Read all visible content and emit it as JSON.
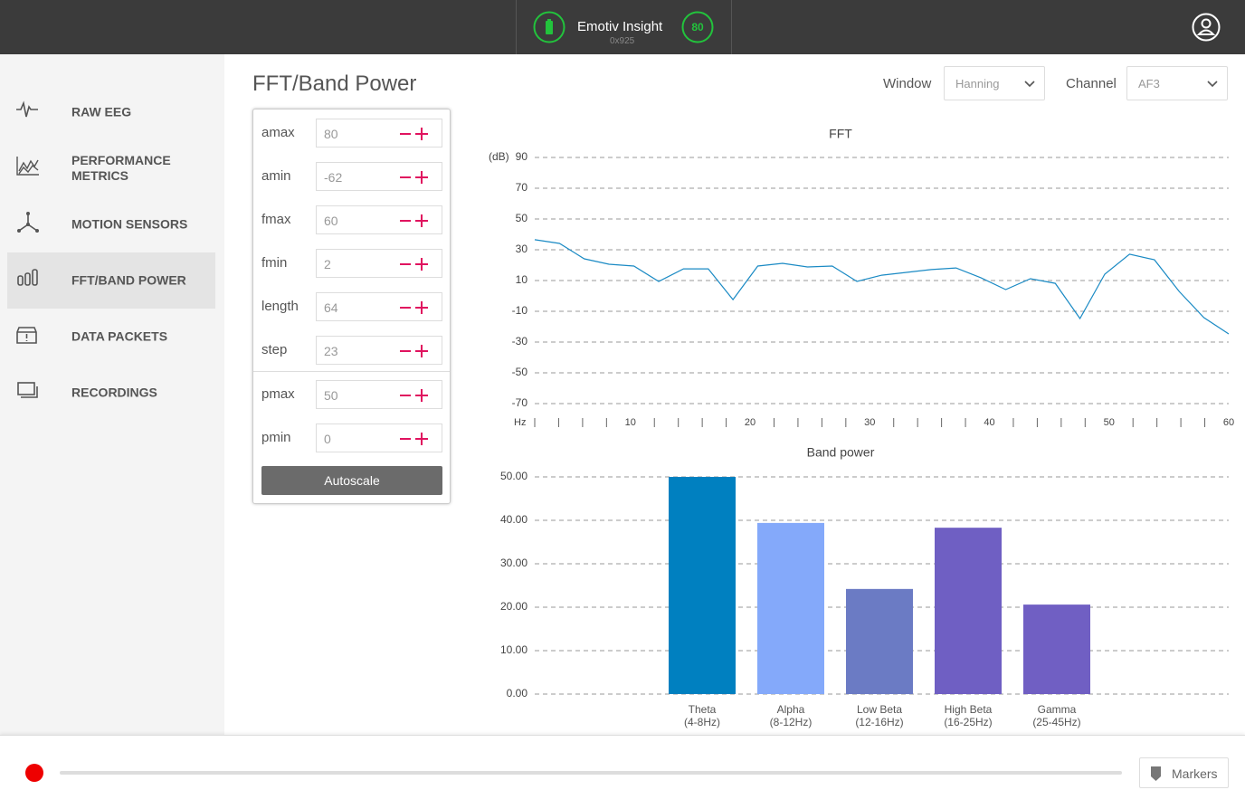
{
  "header": {
    "device": "Emotiv Insight",
    "device_id": "0x925",
    "battery_level": 80
  },
  "sidebar": {
    "items": [
      "RAW EEG",
      "PERFORMANCE METRICS",
      "MOTION SENSORS",
      "FFT/BAND POWER",
      "DATA PACKETS",
      "RECORDINGS"
    ],
    "active": 3
  },
  "page": {
    "title": "FFT/Band Power",
    "window": {
      "label": "Window",
      "value": "Hanning"
    },
    "channel": {
      "label": "Channel",
      "value": "AF3"
    }
  },
  "params": {
    "fft_rows": [
      {
        "name": "amax",
        "value": 80
      },
      {
        "name": "amin",
        "value": -62
      },
      {
        "name": "fmax",
        "value": 60
      },
      {
        "name": "fmin",
        "value": 2
      },
      {
        "name": "length",
        "value": 64
      },
      {
        "name": "step",
        "value": 23
      }
    ],
    "power_rows": [
      {
        "name": "pmax",
        "value": 50
      },
      {
        "name": "pmin",
        "value": 0
      }
    ],
    "autoscale": "Autoscale"
  },
  "fft": {
    "type": "line",
    "title": "FFT",
    "xlabel": "Hz",
    "ylabel": "(dB)",
    "color": "#1a8ac4",
    "x": [
      2,
      4.07,
      6.14,
      8.21,
      10.29,
      12.36,
      14.43,
      16.5,
      18.57,
      20.64,
      22.71,
      24.79,
      26.86,
      28.93,
      31,
      33.07,
      35.14,
      37.21,
      39.29,
      41.36,
      43.43,
      45.5,
      47.57,
      49.64,
      51.71,
      53.79,
      55.86,
      57.93,
      60
    ],
    "values": [
      36.5,
      34.1,
      24.1,
      20.6,
      19.4,
      9.4,
      17.6,
      17.6,
      -2.4,
      19.4,
      21.2,
      18.8,
      19.4,
      9.4,
      13.5,
      15.3,
      17.1,
      18.2,
      11.8,
      4.1,
      11.2,
      8.2,
      -14.7,
      14.1,
      27.1,
      23.5,
      2.9,
      -14.1,
      -24.7
    ],
    "xlim": [
      2,
      60
    ],
    "xticks": [
      10,
      20,
      30,
      40,
      50,
      60
    ],
    "xminor_ticks": [
      2,
      4,
      6,
      8,
      12,
      14,
      16,
      18,
      22,
      24,
      26,
      28,
      32,
      34,
      36,
      38,
      42,
      44,
      46,
      48,
      52,
      54,
      56,
      58
    ],
    "ylim": [
      -80,
      90
    ],
    "yticks": [
      90,
      70,
      50,
      30,
      10,
      -10,
      -30,
      -50,
      -70
    ],
    "grid": true
  },
  "band_power": {
    "type": "bar",
    "title": "Band power",
    "categories": [
      "Theta",
      "Alpha",
      "Low Beta",
      "High Beta",
      "Gamma"
    ],
    "ranges": [
      "(4-8Hz)",
      "(8-12Hz)",
      "(12-16Hz)",
      "(16-25Hz)",
      "(25-45Hz)"
    ],
    "values": [
      50,
      39.4,
      24.2,
      38.3,
      20.6
    ],
    "colors": [
      "#0080c0",
      "#84a9fa",
      "#6b7bc4",
      "#6f5fc3",
      "#705fc3"
    ],
    "ylim": [
      0,
      50
    ],
    "yticks": [
      {
        "value": 50,
        "label": "50.00"
      },
      {
        "value": 40,
        "label": "40.00"
      },
      {
        "value": 30,
        "label": "30.00"
      },
      {
        "value": 20,
        "label": "20.00"
      },
      {
        "value": 10,
        "label": "10.00"
      },
      {
        "value": 0,
        "label": "0.00"
      }
    ],
    "grid": true
  },
  "footer": {
    "markers": "Markers"
  }
}
